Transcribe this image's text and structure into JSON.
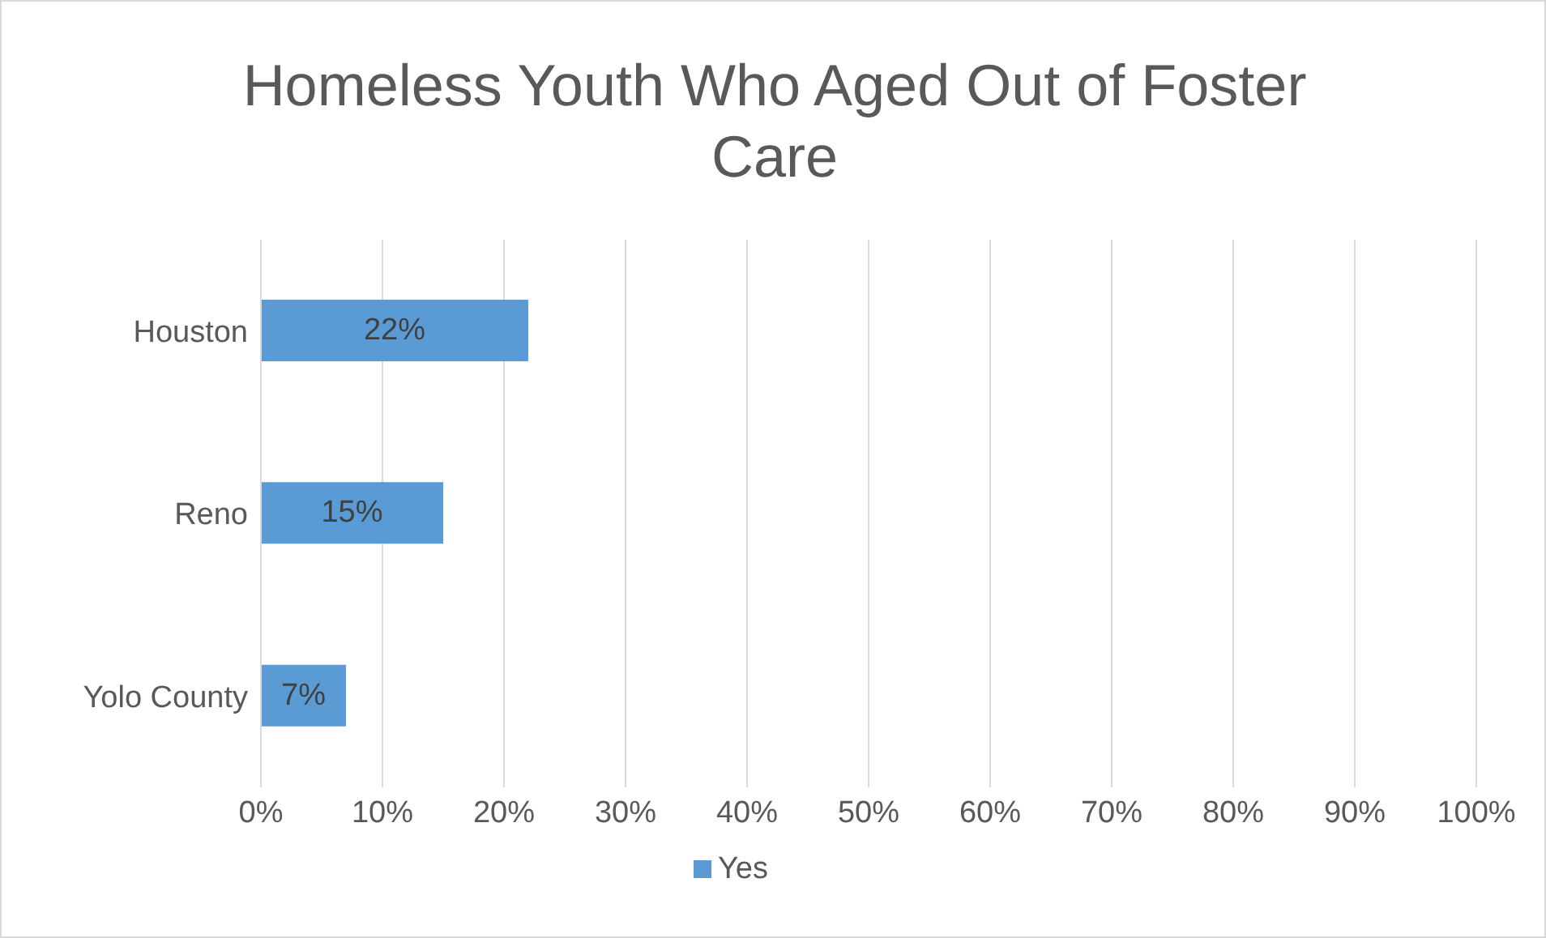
{
  "chart_data": {
    "type": "bar",
    "orientation": "horizontal",
    "title": "Homeless Youth Who Aged Out of Foster Care",
    "categories": [
      "Houston",
      "Reno",
      "Yolo County"
    ],
    "series": [
      {
        "name": "Yes",
        "color": "#5b9bd5",
        "values": [
          22,
          15,
          7
        ],
        "value_labels": [
          "22%",
          "15%",
          "7%"
        ]
      }
    ],
    "xlim": [
      0,
      100
    ],
    "xticks": [
      {
        "value": 0,
        "label": "0%"
      },
      {
        "value": 10,
        "label": "10%"
      },
      {
        "value": 20,
        "label": "20%"
      },
      {
        "value": 30,
        "label": "30%"
      },
      {
        "value": 40,
        "label": "40%"
      },
      {
        "value": 50,
        "label": "50%"
      },
      {
        "value": 60,
        "label": "60%"
      },
      {
        "value": 70,
        "label": "70%"
      },
      {
        "value": 80,
        "label": "80%"
      },
      {
        "value": 90,
        "label": "90%"
      },
      {
        "value": 100,
        "label": "100%"
      }
    ],
    "grid": "x",
    "legend": "bottom"
  }
}
